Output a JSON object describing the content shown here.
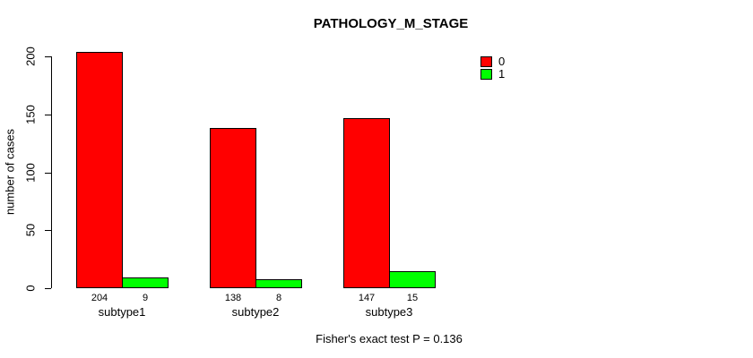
{
  "chart_data": {
    "type": "bar",
    "title": "PATHOLOGY_M_STAGE",
    "categories": [
      "subtype1",
      "subtype2",
      "subtype3"
    ],
    "series": [
      {
        "name": "0",
        "color": "#FF0000",
        "values": [
          204,
          138,
          147
        ]
      },
      {
        "name": "1",
        "color": "#00FF00",
        "values": [
          9,
          8,
          15
        ]
      }
    ],
    "xlabel": "",
    "ylabel": "number of cases",
    "yticks": [
      0,
      50,
      100,
      150,
      200
    ],
    "ylim": [
      0,
      210
    ],
    "grid": false,
    "legend_position": "top-right",
    "bar_value_labels_shown": true,
    "footer": "Fisher's exact test P = 0.136"
  }
}
